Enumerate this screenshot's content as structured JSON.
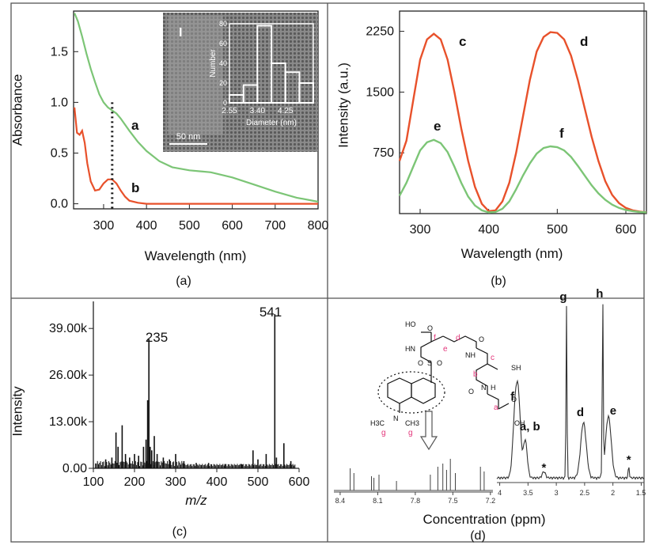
{
  "panels": {
    "a": {
      "caption": "(a)",
      "ylabel": "Absorbance",
      "xlabel": "Wavelength (nm)",
      "yticks": [
        "0.0",
        "0.5",
        "1.0",
        "1.5"
      ],
      "xticks": [
        "300",
        "400",
        "500",
        "600",
        "700",
        "800"
      ],
      "curve_labels": [
        "a",
        "b"
      ],
      "inset": {
        "panel_tag": "I",
        "ylabel": "Number",
        "xlabel": "Diameter (nm)",
        "yticks": [
          "0",
          "20",
          "40",
          "60",
          "80"
        ],
        "xticks": [
          "2.55",
          "3.40",
          "4.25"
        ],
        "scalebar": "50 nm"
      }
    },
    "b": {
      "caption": "(b)",
      "ylabel": "Intensity (a.u.)",
      "xlabel": "Wavelength (nm)",
      "yticks": [
        "750",
        "1500",
        "2250"
      ],
      "xticks": [
        "300",
        "400",
        "500",
        "600"
      ],
      "curve_labels": [
        "c",
        "d",
        "e",
        "f"
      ]
    },
    "c": {
      "caption": "(c)",
      "ylabel": "Intensity",
      "xlabel": "m/z",
      "yticks": [
        "0.00",
        "13.00k",
        "26.00k",
        "39.00k"
      ],
      "xticks": [
        "100",
        "200",
        "300",
        "400",
        "500",
        "600"
      ],
      "peak_labels": [
        "235",
        "541"
      ]
    },
    "d": {
      "caption": "(d)",
      "xlabel": "Concentration (ppm)",
      "left_ticks": [
        "8.4",
        "8.1",
        "7.8",
        "7.5",
        "7.2"
      ],
      "right_ticks": [
        "4",
        "3.5",
        "3",
        "2.5",
        "2",
        "1.5"
      ],
      "peak_labels": [
        "f",
        "a, b",
        "*",
        "d",
        "g",
        "h",
        "e",
        "*"
      ],
      "structure": {
        "atoms": [
          "HO",
          "O",
          "HN",
          "S",
          "O",
          "O",
          "O",
          "NH",
          "SH",
          "N",
          "H",
          "O",
          "N",
          "OH",
          "O"
        ],
        "methyl": [
          "H3C",
          "CH3"
        ],
        "letters": [
          "a",
          "b",
          "c",
          "d",
          "e",
          "f",
          "g",
          "g"
        ]
      }
    }
  },
  "chart_data": [
    {
      "type": "line",
      "panel": "a",
      "title": "",
      "xlabel": "Wavelength (nm)",
      "ylabel": "Absorbance",
      "xlim": [
        230,
        800
      ],
      "ylim": [
        -0.05,
        1.9
      ],
      "series": [
        {
          "name": "a",
          "color": "#7cc576",
          "x": [
            232,
            240,
            250,
            260,
            270,
            280,
            290,
            300,
            310,
            320,
            330,
            340,
            360,
            380,
            400,
            430,
            460,
            500,
            550,
            600,
            650,
            700,
            750,
            800
          ],
          "y": [
            1.88,
            1.8,
            1.65,
            1.48,
            1.33,
            1.2,
            1.08,
            1.0,
            0.95,
            0.92,
            0.89,
            0.84,
            0.72,
            0.61,
            0.52,
            0.42,
            0.36,
            0.33,
            0.31,
            0.26,
            0.19,
            0.12,
            0.06,
            0.02
          ]
        },
        {
          "name": "b",
          "color": "#e8512b",
          "x": [
            232,
            238,
            244,
            250,
            256,
            262,
            270,
            280,
            290,
            300,
            310,
            320,
            330,
            340,
            350,
            360,
            380,
            400,
            450,
            500,
            600,
            700,
            800
          ],
          "y": [
            0.95,
            0.7,
            0.68,
            0.72,
            0.6,
            0.4,
            0.22,
            0.13,
            0.14,
            0.2,
            0.24,
            0.24,
            0.2,
            0.13,
            0.07,
            0.03,
            0.01,
            0.0,
            0.0,
            0.0,
            0.0,
            0.0,
            0.0
          ]
        }
      ],
      "marker_x": 320
    },
    {
      "type": "bar",
      "panel": "a-inset",
      "title": "",
      "xlabel": "Diameter (nm)",
      "ylabel": "Number",
      "ylim": [
        0,
        80
      ],
      "categories": [
        "2.55",
        "2.98",
        "3.40",
        "3.83",
        "4.25",
        "4.68"
      ],
      "values": [
        8,
        18,
        78,
        40,
        31,
        20
      ]
    },
    {
      "type": "line",
      "panel": "b",
      "title": "",
      "xlabel": "Wavelength (nm)",
      "ylabel": "Intensity (a.u.)",
      "xlim": [
        270,
        630
      ],
      "ylim": [
        0,
        2500
      ],
      "series": [
        {
          "name": "c, d",
          "color": "#e8512b",
          "x": [
            270,
            280,
            290,
            300,
            310,
            320,
            330,
            340,
            350,
            360,
            370,
            380,
            390,
            400,
            410,
            420,
            430,
            440,
            450,
            460,
            470,
            480,
            490,
            500,
            510,
            520,
            530,
            540,
            550,
            560,
            570,
            580,
            590,
            600,
            610,
            620,
            630
          ],
          "y": [
            650,
            900,
            1400,
            1900,
            2150,
            2220,
            2150,
            1900,
            1500,
            1050,
            650,
            330,
            120,
            30,
            40,
            150,
            380,
            750,
            1200,
            1650,
            2000,
            2180,
            2240,
            2230,
            2150,
            1950,
            1650,
            1300,
            950,
            650,
            400,
            230,
            130,
            70,
            40,
            25,
            15
          ]
        },
        {
          "name": "e, f",
          "color": "#7cc576",
          "x": [
            270,
            280,
            290,
            300,
            310,
            320,
            330,
            340,
            350,
            360,
            370,
            380,
            390,
            400,
            410,
            420,
            430,
            440,
            450,
            460,
            470,
            480,
            490,
            500,
            510,
            520,
            530,
            540,
            550,
            560,
            570,
            580,
            590,
            600,
            610,
            620,
            630
          ],
          "y": [
            220,
            380,
            580,
            780,
            880,
            910,
            870,
            760,
            580,
            380,
            210,
            100,
            40,
            15,
            20,
            60,
            150,
            300,
            470,
            620,
            740,
            810,
            830,
            820,
            780,
            700,
            590,
            470,
            350,
            250,
            170,
            110,
            70,
            45,
            30,
            20,
            15
          ]
        }
      ]
    },
    {
      "type": "bar",
      "panel": "c",
      "title": "",
      "xlabel": "m/z",
      "ylabel": "Intensity",
      "xlim": [
        100,
        600
      ],
      "ylim": [
        0,
        45000
      ],
      "peaks": [
        {
          "x": 130,
          "y": 2500
        },
        {
          "x": 145,
          "y": 3000
        },
        {
          "x": 155,
          "y": 10000
        },
        {
          "x": 160,
          "y": 6000
        },
        {
          "x": 170,
          "y": 12000
        },
        {
          "x": 178,
          "y": 4000
        },
        {
          "x": 188,
          "y": 3000
        },
        {
          "x": 200,
          "y": 4000
        },
        {
          "x": 210,
          "y": 3500
        },
        {
          "x": 222,
          "y": 6000
        },
        {
          "x": 228,
          "y": 8000
        },
        {
          "x": 232,
          "y": 19000
        },
        {
          "x": 235,
          "y": 36000
        },
        {
          "x": 238,
          "y": 6000
        },
        {
          "x": 242,
          "y": 5000
        },
        {
          "x": 248,
          "y": 9000
        },
        {
          "x": 255,
          "y": 4000
        },
        {
          "x": 270,
          "y": 3000
        },
        {
          "x": 285,
          "y": 2500
        },
        {
          "x": 300,
          "y": 4000
        },
        {
          "x": 320,
          "y": 2000
        },
        {
          "x": 350,
          "y": 1500
        },
        {
          "x": 380,
          "y": 1500
        },
        {
          "x": 420,
          "y": 1200
        },
        {
          "x": 460,
          "y": 1200
        },
        {
          "x": 488,
          "y": 5000
        },
        {
          "x": 500,
          "y": 2500
        },
        {
          "x": 520,
          "y": 4000
        },
        {
          "x": 541,
          "y": 43000
        },
        {
          "x": 545,
          "y": 3000
        },
        {
          "x": 563,
          "y": 7000
        },
        {
          "x": 580,
          "y": 2000
        }
      ],
      "labeled": [
        235,
        541
      ]
    },
    {
      "type": "line",
      "panel": "d",
      "title": "",
      "xlabel": "Concentration (ppm)",
      "note": "1H NMR spectrum; left segment 8.4-7.2 ppm, right segment 4-1.5 ppm",
      "left_peaks_ppm": [
        8.32,
        8.29,
        8.15,
        8.13,
        8.09,
        7.95,
        7.68,
        7.62,
        7.58,
        7.55,
        7.52,
        7.48,
        7.28,
        7.25
      ],
      "right_peaks_ppm": [
        {
          "ppm": 3.72,
          "label": "f"
        },
        {
          "ppm": 3.55,
          "label": "a, b"
        },
        {
          "ppm": 3.22,
          "label": "*"
        },
        {
          "ppm": 2.52,
          "label": "d"
        },
        {
          "ppm": 2.82,
          "label": "g"
        },
        {
          "ppm": 2.18,
          "label": "h"
        },
        {
          "ppm": 2.08,
          "label": "e"
        },
        {
          "ppm": 1.72,
          "label": "*"
        }
      ]
    }
  ]
}
